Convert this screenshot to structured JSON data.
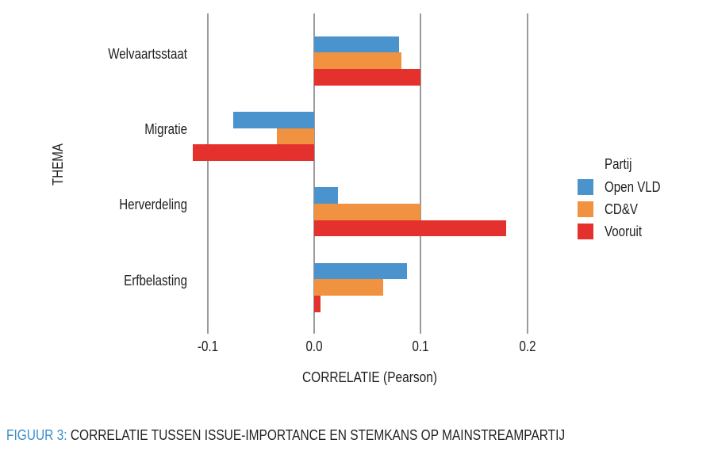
{
  "figure": {
    "caption_prefix": "FIGUUR 3:",
    "caption_text": "CORRELATIE TUSSEN ISSUE-IMPORTANCE EN STEMKANS OP MAINSTREAMPARTIJ",
    "caption_prefix_color": "#3a8dcb"
  },
  "chart_data": {
    "type": "bar",
    "orientation": "horizontal",
    "title": "",
    "xlabel": "CORRELATIE (Pearson)",
    "ylabel": "THEMA",
    "categories": [
      "Welvaartsstaat",
      "Migratie",
      "Herverdeling",
      "Erfbelasting"
    ],
    "series": [
      {
        "name": "Open VLD",
        "color": "#4b93cd",
        "values": [
          0.08,
          -0.076,
          0.022,
          0.087
        ]
      },
      {
        "name": "CD&V",
        "color": "#f0923f",
        "values": [
          0.082,
          -0.035,
          0.1,
          0.065
        ]
      },
      {
        "name": "Vooruit",
        "color": "#e5312d",
        "values": [
          0.1,
          -0.114,
          0.18,
          0.006
        ]
      }
    ],
    "xlim": [
      -0.125,
      0.21
    ],
    "xticks": [
      -0.1,
      0.0,
      0.1,
      0.2
    ],
    "xtick_labels": [
      "-0.1",
      "0.0",
      "0.1",
      "0.2"
    ],
    "legend_title": "Partij",
    "legend_position": "right",
    "grid": "vertical-ticks-only",
    "gridline_color": "#9b9b9b"
  }
}
